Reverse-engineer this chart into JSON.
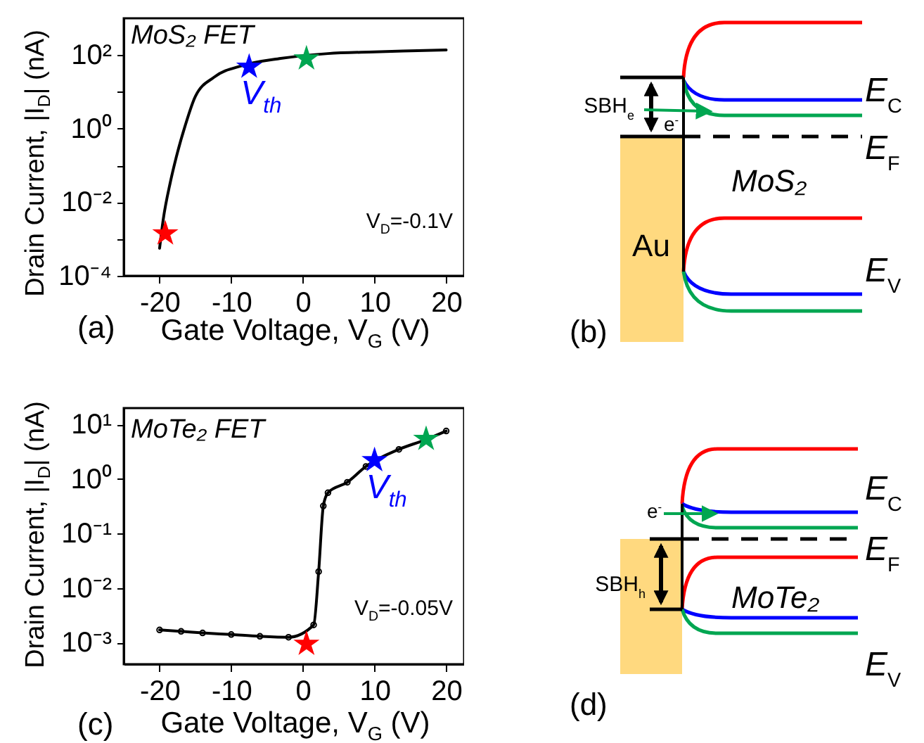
{
  "chart_data": [
    {
      "type": "line",
      "xlabel": "Gate Voltage, V$_{G}$ (V)",
      "ylabel": "Drain Current, |I$_{D}$| (nA)",
      "xlim": [
        -25,
        22.5
      ],
      "ylim": [
        0.0001,
        1000
      ],
      "xticks": [
        -20,
        -10,
        0,
        10,
        20
      ],
      "yticks": [
        {
          "value": 0.0001,
          "label": "10⁻⁴"
        },
        {
          "value": 0.001,
          "label": null
        },
        {
          "value": 0.01,
          "label": "10⁻²"
        },
        {
          "value": 0.1,
          "label": null
        },
        {
          "value": 1,
          "label": "10⁰"
        },
        {
          "value": 10,
          "label": null
        },
        {
          "value": 100,
          "label": "10²"
        }
      ],
      "log": "y",
      "series": [
        {
          "color": "#000000",
          "x": [
            -20,
            -19.5,
            -18.5,
            -17.7,
            -16.4,
            -15,
            -12.4,
            -8.4,
            -3.1,
            3.5,
            10,
            15,
            20
          ],
          "values": [
            0.00056,
            0.0033,
            0.035,
            0.16,
            1.26,
            7.6,
            25,
            52,
            81,
            110,
            122,
            130,
            138
          ]
        },
        {
          "type": "scatter",
          "marker": "star",
          "x": [
            -19.2,
            -7.5,
            0.5
          ],
          "values": [
            0.0014,
            48,
            80
          ],
          "colors": [
            "#ff0000",
            "#0000ff",
            "#00a651"
          ]
        }
      ],
      "annotations": [
        {
          "text": "V$_{th}$",
          "x": -7.5,
          "y": 48
        },
        "MoS₂ FET",
        "V$_{D}$=-0.1V",
        "(a)"
      ]
    },
    {
      "type": "other",
      "annotations": [
        "SBH$_{e}$",
        "e$^{-}$",
        "E$_{C}$",
        "E$_{F}$",
        "MoS₂",
        "Au",
        "E$_{V}$",
        "(b)"
      ]
    },
    {
      "type": "line",
      "xlabel": "Gate Voltage, V$_{G}$ (V)",
      "ylabel": "Drain Current, |I$_{D}$| (nA)",
      "xlim": [
        -25,
        22.5
      ],
      "ylim": [
        0.0004,
        20
      ],
      "xticks": [
        -20,
        -10,
        0,
        10,
        20
      ],
      "yticks": [
        {
          "value": 0.001,
          "label": "10⁻³"
        },
        {
          "value": 0.01,
          "label": "10⁻²"
        },
        {
          "value": 0.1,
          "label": "10⁻¹"
        },
        {
          "value": 1,
          "label": "10⁰"
        },
        {
          "value": 10,
          "label": "10¹"
        }
      ],
      "log": "y",
      "series": [
        {
          "color": "#000000",
          "marker": "circle",
          "x": [
            -20,
            -17,
            -14,
            -10,
            -6,
            -2,
            1.5,
            2.2,
            2.85,
            3.5,
            6.2,
            8.8,
            13.4,
            17,
            20
          ],
          "values": [
            0.0017,
            0.0016,
            0.0015,
            0.0014,
            0.0013,
            0.00125,
            0.0021,
            0.02,
            0.32,
            0.56,
            0.87,
            1.7,
            3.5,
            5.2,
            7.6
          ]
        },
        {
          "type": "scatter",
          "marker": "star",
          "x": [
            0.5,
            10,
            17.2
          ],
          "values": [
            0.00094,
            2.2,
            5.4
          ],
          "colors": [
            "#ff0000",
            "#0000ff",
            "#00a651"
          ]
        }
      ],
      "annotations": [
        {
          "text": "V$_{th}$",
          "x": 10,
          "y": 2.2
        },
        "MoTe₂ FET",
        "V$_{D}$=-0.05V",
        "(c)"
      ]
    },
    {
      "type": "other",
      "annotations": [
        "e$^{-}$",
        "E$_{C}$",
        "E$_{F}$",
        "SBH$_{h}$",
        "MoTe₂",
        "E$_{V}$",
        "(d)"
      ]
    }
  ]
}
